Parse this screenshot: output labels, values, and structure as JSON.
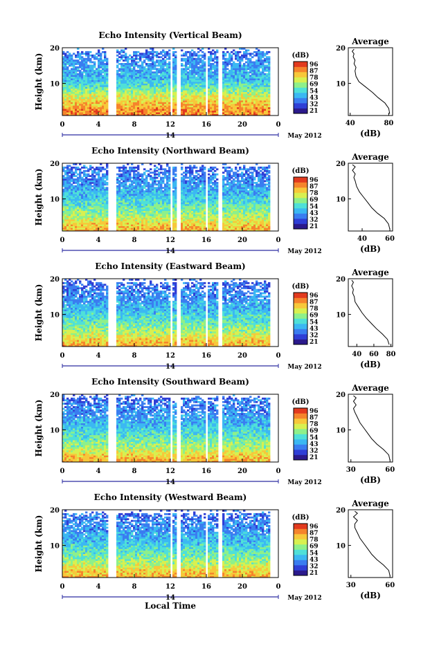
{
  "colors": {
    "scale": [
      "#2b1a8c",
      "#2f3fd6",
      "#3a7df0",
      "#3bb8f2",
      "#4fe0d8",
      "#8ef08a",
      "#d8f050",
      "#f7c83a",
      "#f5842c",
      "#e23a1e"
    ],
    "blank": "#ffffff",
    "frame": "#000000"
  },
  "common": {
    "xticks": [
      "0",
      "4",
      "8",
      "12",
      "16",
      "20",
      "0"
    ],
    "date_center": "14",
    "date_label": "May 2012",
    "colorbar_unit": "(dB)",
    "colorbar_ticks": [
      "96",
      "87",
      "78",
      "69",
      "54",
      "43",
      "32",
      "21"
    ],
    "avg_title": "Average",
    "avg_xlabel": "(dB)",
    "ylabel": "Height (km)",
    "yticks": [
      "20",
      "10"
    ],
    "xlabel": "Local Time"
  },
  "chart_data": [
    {
      "type": "heatmap",
      "title": "Echo Intensity (Vertical Beam)",
      "xlim": [
        0,
        24
      ],
      "ylim": [
        1,
        20
      ],
      "gaps_hours": [
        [
          5.0,
          5.9
        ],
        [
          12.0,
          12.2
        ],
        [
          12.8,
          13.1
        ],
        [
          16.0,
          16.2
        ],
        [
          17.3,
          17.8
        ],
        [
          23.0,
          24.0
        ]
      ],
      "level_profile": [
        [
          1,
          0.86
        ],
        [
          3,
          0.82
        ],
        [
          5,
          0.72
        ],
        [
          7,
          0.62
        ],
        [
          9,
          0.48
        ],
        [
          11,
          0.38
        ],
        [
          14,
          0.32
        ],
        [
          17,
          0.28
        ],
        [
          20,
          0.22
        ]
      ],
      "avg_profile": {
        "xlim": [
          38,
          84
        ],
        "xticks": [
          "40",
          "80"
        ],
        "points": [
          [
            81,
            1.5
          ],
          [
            80,
            3
          ],
          [
            76,
            4.5
          ],
          [
            69,
            6
          ],
          [
            63,
            7.5
          ],
          [
            56,
            9
          ],
          [
            49,
            10.5
          ],
          [
            46,
            12
          ],
          [
            45,
            13.5
          ],
          [
            46,
            14.5
          ],
          [
            44,
            15.5
          ],
          [
            45,
            16.5
          ],
          [
            43,
            17.5
          ],
          [
            44,
            18.3
          ],
          [
            42,
            19
          ],
          [
            44,
            19.6
          ]
        ]
      }
    },
    {
      "type": "heatmap",
      "title": "Echo Intensity (Northward Beam)",
      "xlim": [
        0,
        24
      ],
      "ylim": [
        1,
        20
      ],
      "gaps_hours": [
        [
          5.0,
          5.9
        ],
        [
          12.0,
          12.2
        ],
        [
          12.8,
          13.1
        ],
        [
          16.0,
          16.2
        ],
        [
          17.3,
          17.8
        ],
        [
          23.0,
          24.0
        ]
      ],
      "level_profile": [
        [
          1,
          0.8
        ],
        [
          3,
          0.72
        ],
        [
          5,
          0.6
        ],
        [
          7,
          0.52
        ],
        [
          9,
          0.45
        ],
        [
          11,
          0.38
        ],
        [
          14,
          0.3
        ],
        [
          17,
          0.25
        ],
        [
          20,
          0.2
        ]
      ],
      "avg_profile": {
        "xlim": [
          30,
          62
        ],
        "xticks": [
          "40",
          "60"
        ],
        "points": [
          [
            60,
            1.5
          ],
          [
            59,
            3
          ],
          [
            56,
            4.5
          ],
          [
            51,
            6
          ],
          [
            47,
            7.5
          ],
          [
            44,
            9
          ],
          [
            41,
            10.5
          ],
          [
            38,
            12
          ],
          [
            36,
            13.5
          ],
          [
            35,
            15
          ],
          [
            34,
            16
          ],
          [
            35,
            17
          ],
          [
            33,
            18
          ],
          [
            35,
            19
          ],
          [
            33,
            19.6
          ]
        ]
      }
    },
    {
      "type": "heatmap",
      "title": "Echo Intensity (Eastward Beam)",
      "xlim": [
        0,
        24
      ],
      "ylim": [
        1,
        20
      ],
      "gaps_hours": [
        [
          5.0,
          5.9
        ],
        [
          12.0,
          12.2
        ],
        [
          12.8,
          13.1
        ],
        [
          16.0,
          16.2
        ],
        [
          17.3,
          17.8
        ],
        [
          23.0,
          24.0
        ]
      ],
      "level_profile": [
        [
          1,
          0.8
        ],
        [
          3,
          0.72
        ],
        [
          5,
          0.6
        ],
        [
          7,
          0.52
        ],
        [
          9,
          0.45
        ],
        [
          11,
          0.38
        ],
        [
          14,
          0.3
        ],
        [
          17,
          0.25
        ],
        [
          20,
          0.2
        ]
      ],
      "avg_profile": {
        "xlim": [
          30,
          82
        ],
        "xticks": [
          "40",
          "60",
          "80"
        ],
        "points": [
          [
            78,
            1.5
          ],
          [
            76,
            3
          ],
          [
            70,
            4.5
          ],
          [
            63,
            6
          ],
          [
            57,
            7.5
          ],
          [
            51,
            9
          ],
          [
            46,
            10.5
          ],
          [
            42,
            12
          ],
          [
            38,
            13.5
          ],
          [
            37,
            15
          ],
          [
            35,
            16
          ],
          [
            36,
            17
          ],
          [
            34,
            18
          ],
          [
            36,
            19
          ],
          [
            34,
            19.6
          ]
        ]
      }
    },
    {
      "type": "heatmap",
      "title": "Echo Intensity (Southward Beam)",
      "xlim": [
        0,
        24
      ],
      "ylim": [
        1,
        20
      ],
      "gaps_hours": [
        [
          5.0,
          5.9
        ],
        [
          12.0,
          12.2
        ],
        [
          12.8,
          13.1
        ],
        [
          16.0,
          16.2
        ],
        [
          17.3,
          17.8
        ],
        [
          23.0,
          24.0
        ]
      ],
      "level_profile": [
        [
          1,
          0.8
        ],
        [
          3,
          0.72
        ],
        [
          5,
          0.6
        ],
        [
          7,
          0.52
        ],
        [
          9,
          0.45
        ],
        [
          11,
          0.38
        ],
        [
          14,
          0.3
        ],
        [
          17,
          0.25
        ],
        [
          20,
          0.2
        ]
      ],
      "avg_profile": {
        "xlim": [
          28,
          62
        ],
        "xticks": [
          "30",
          "60"
        ],
        "points": [
          [
            60,
            1.5
          ],
          [
            59,
            3
          ],
          [
            55,
            4.5
          ],
          [
            50,
            6
          ],
          [
            46,
            7.5
          ],
          [
            43,
            9
          ],
          [
            40,
            10.5
          ],
          [
            37,
            12
          ],
          [
            35,
            13.5
          ],
          [
            33,
            15
          ],
          [
            32,
            16
          ],
          [
            34,
            17
          ],
          [
            32,
            18
          ],
          [
            34,
            19
          ],
          [
            32,
            19.6
          ]
        ]
      }
    },
    {
      "type": "heatmap",
      "title": "Echo Intensity (Westward Beam)",
      "xlim": [
        0,
        24
      ],
      "ylim": [
        1,
        20
      ],
      "gaps_hours": [
        [
          5.0,
          5.9
        ],
        [
          12.0,
          12.2
        ],
        [
          12.8,
          13.1
        ],
        [
          16.0,
          16.2
        ],
        [
          17.3,
          17.8
        ],
        [
          23.0,
          24.0
        ]
      ],
      "level_profile": [
        [
          1,
          0.8
        ],
        [
          3,
          0.72
        ],
        [
          5,
          0.6
        ],
        [
          7,
          0.52
        ],
        [
          9,
          0.45
        ],
        [
          11,
          0.38
        ],
        [
          14,
          0.3
        ],
        [
          17,
          0.25
        ],
        [
          20,
          0.2
        ]
      ],
      "avg_profile": {
        "xlim": [
          28,
          62
        ],
        "xticks": [
          "30",
          "60"
        ],
        "points": [
          [
            60,
            1.5
          ],
          [
            59,
            3
          ],
          [
            55,
            4.5
          ],
          [
            50,
            6
          ],
          [
            46,
            7.5
          ],
          [
            43,
            9
          ],
          [
            40,
            10.5
          ],
          [
            37,
            12
          ],
          [
            35,
            13.5
          ],
          [
            33,
            15
          ],
          [
            33,
            16
          ],
          [
            35,
            17
          ],
          [
            32,
            18
          ],
          [
            35,
            19
          ],
          [
            33,
            19.6
          ]
        ]
      }
    }
  ]
}
